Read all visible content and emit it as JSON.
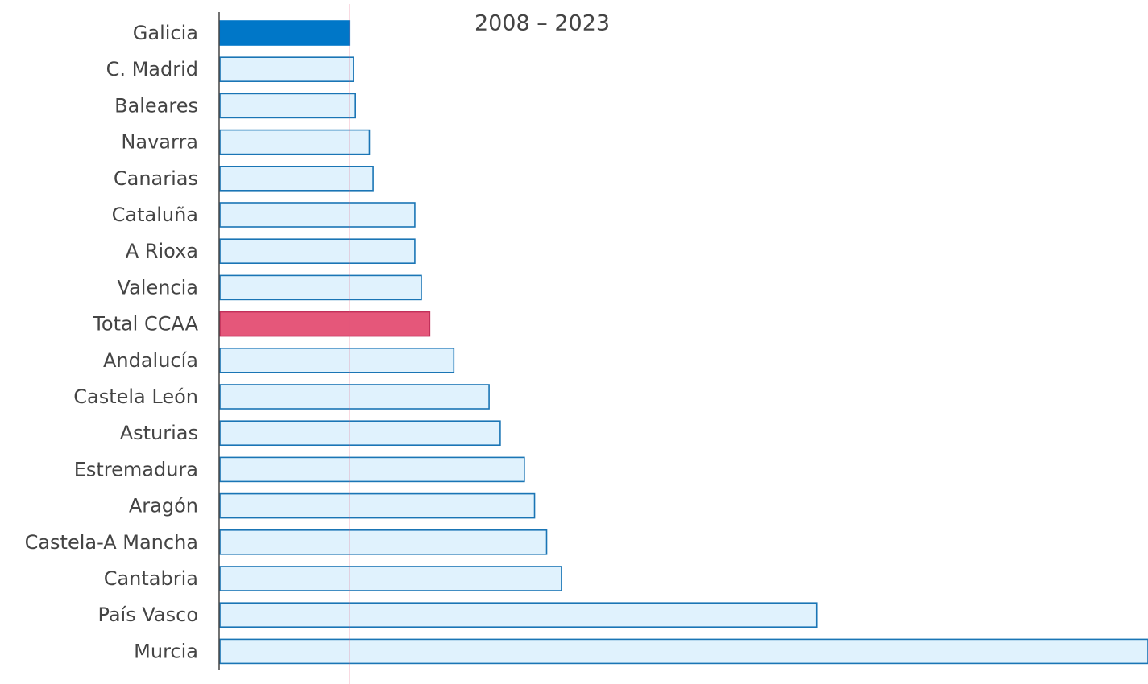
{
  "chart_data": {
    "type": "bar",
    "orientation": "horizontal",
    "title": "2008 – 2023",
    "categories": [
      "Galicia",
      "C. Madrid",
      "Baleares",
      "Navarra",
      "Canarias",
      "Cataluña",
      "A Rioxa",
      "Valencia",
      "Total CCAA",
      "Andalucía",
      "Castela León",
      "Asturias",
      "Estremadura",
      "Aragón",
      "Castela-A Mancha",
      "Cantabria",
      "País Vasco",
      "Murcia"
    ],
    "values": [
      14.0,
      14.4,
      14.6,
      16.1,
      16.5,
      21.0,
      21.0,
      21.7,
      22.6,
      25.2,
      29.0,
      30.2,
      32.8,
      33.9,
      35.2,
      36.8,
      64.3,
      100
    ],
    "colors": [
      "#0077c8",
      "#e0f2fd",
      "#e0f2fd",
      "#e0f2fd",
      "#e0f2fd",
      "#e0f2fd",
      "#e0f2fd",
      "#e0f2fd",
      "#e5577a",
      "#e0f2fd",
      "#e0f2fd",
      "#e0f2fd",
      "#e0f2fd",
      "#e0f2fd",
      "#e0f2fd",
      "#e0f2fd",
      "#e0f2fd",
      "#e0f2fd"
    ],
    "xlim": [
      0,
      100
    ],
    "reference_line_color": "#e5577a"
  }
}
